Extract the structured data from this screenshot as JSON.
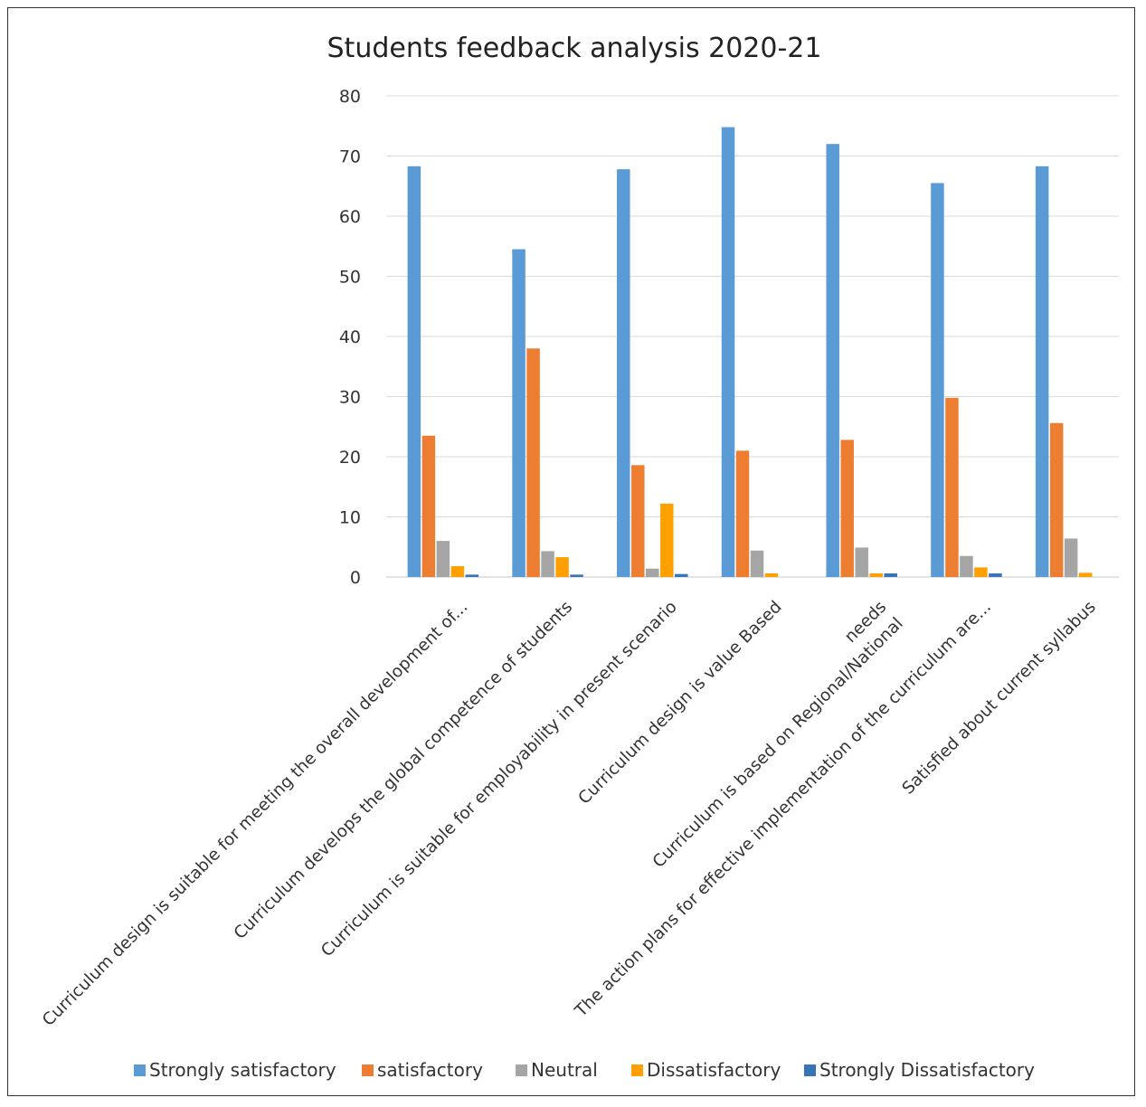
{
  "chart_data": {
    "type": "bar",
    "title": "Students feedback analysis 2020-21",
    "xlabel": "",
    "ylabel": "",
    "ylim": [
      0,
      80
    ],
    "yticks": [
      "80",
      "70",
      "60",
      "50",
      "40",
      "30",
      "20",
      "10",
      "0"
    ],
    "grid": true,
    "legend_position": "bottom",
    "categories": [
      "Curriculum design is suitable for meeting the overall development of...",
      "Curriculum develops the global competence of students",
      "Curriculum is suitable for employability in present scenario",
      "Curriculum design is value Based",
      "Curriculum is based  on Regional/National needs",
      "The action plans for  effective implementation of the curriculum are...",
      "Satisfied about current syllabus"
    ],
    "category_lines": [
      [
        "Curriculum design is suitable for meeting the overall development of..."
      ],
      [
        "Curriculum develops the global competence of students"
      ],
      [
        "Curriculum is suitable for employability in present scenario"
      ],
      [
        "Curriculum design is value Based"
      ],
      [
        "needs",
        "Curriculum is based  on Regional/National"
      ],
      [
        "The action plans for  effective implementation of the curriculum are..."
      ],
      [
        "Satisfied about current syllabus"
      ]
    ],
    "series": [
      {
        "name": "Strongly satisfactory",
        "color": "#5b9bd5",
        "values": [
          68.3,
          54.5,
          67.8,
          74.8,
          72.0,
          65.5,
          68.3
        ]
      },
      {
        "name": "satisfactory",
        "color": "#ed7d31",
        "values": [
          23.5,
          38.0,
          18.6,
          21.0,
          22.8,
          29.8,
          25.6
        ]
      },
      {
        "name": "Neutral",
        "color": "#a5a5a5",
        "values": [
          6.0,
          4.3,
          1.4,
          4.4,
          4.9,
          3.5,
          6.4
        ]
      },
      {
        "name": "Dissatisfactory",
        "color": "#ffa000",
        "values": [
          1.8,
          3.3,
          12.2,
          0.6,
          0.6,
          1.6,
          0.7
        ]
      },
      {
        "name": "Strongly Dissatisfactory",
        "color": "#3a74b8",
        "values": [
          0.4,
          0.4,
          0.5,
          0.0,
          0.6,
          0.6,
          0.0
        ]
      }
    ]
  }
}
